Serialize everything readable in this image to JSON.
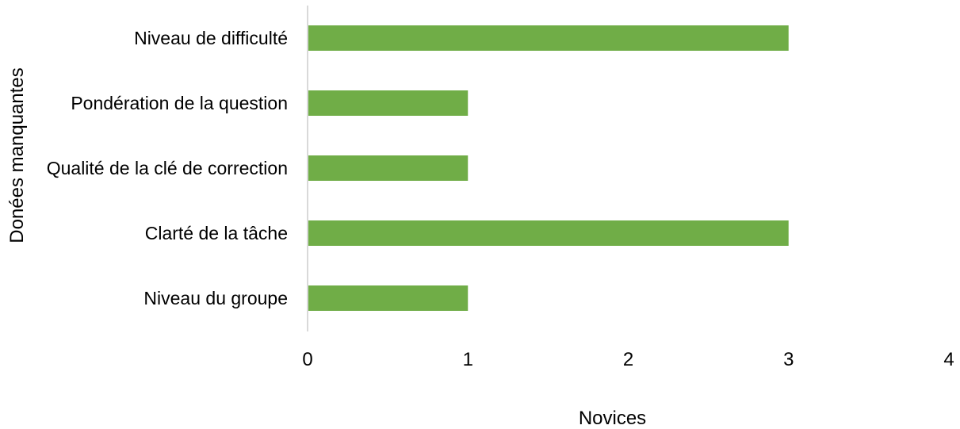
{
  "chart_data": {
    "type": "bar",
    "orientation": "horizontal",
    "categories": [
      "Niveau de difficulté",
      "Pondération de la question",
      "Qualité de la clé de correction",
      "Clarté de la tâche",
      "Niveau du groupe"
    ],
    "values": [
      3,
      1,
      1,
      3,
      1
    ],
    "xlabel": "Novices",
    "ylabel": "Donées manquantes",
    "xlim": [
      0,
      4
    ],
    "xticks": [
      0,
      1,
      2,
      3,
      4
    ],
    "xtick_labels": [
      "0",
      "1",
      "2",
      "3",
      "4"
    ],
    "grid": false,
    "legend": "none",
    "bar_color": "#70ad47",
    "axis_color": "#d9d9d9"
  }
}
